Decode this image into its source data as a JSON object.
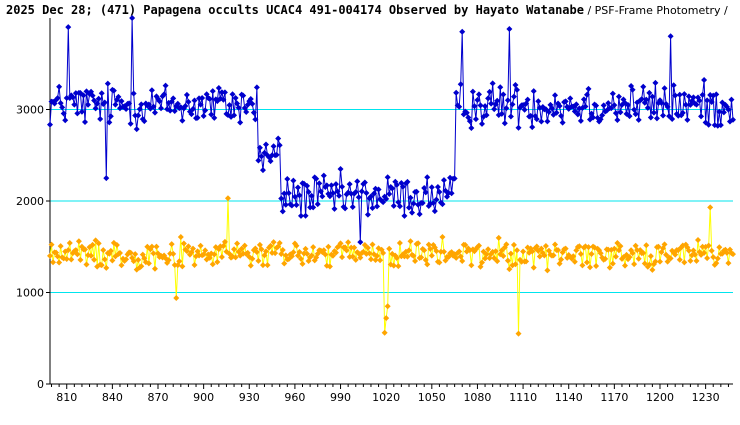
{
  "title": {
    "main": "2025 Dec 28; (471) Papagena occults UCAC4 491-004174 Observed by Hayato Watanabe",
    "sub": " / PSF-Frame Photometry /"
  },
  "chart_data": {
    "type": "scatter",
    "title": "2025 Dec 28; (471) Papagena occults UCAC4 491-004174 Observed by Hayato Watanabe / PSF-Frame Photometry /",
    "xlabel": "",
    "ylabel": "",
    "xlim": [
      799,
      1248
    ],
    "ylim": [
      0,
      4000
    ],
    "x_ticks": [
      810,
      840,
      870,
      900,
      930,
      960,
      990,
      1020,
      1050,
      1080,
      1110,
      1140,
      1170,
      1200,
      1230
    ],
    "y_ticks": [
      0,
      1000,
      2000,
      3000
    ],
    "gridlines_y": [
      1000,
      2000,
      3000
    ],
    "grid_color": "#00e5ee",
    "series": [
      {
        "color": "#0000cd",
        "marker": "diamond",
        "baseline": {
          "x_start": 799,
          "x_end": 1248,
          "levels": [
            {
              "x_from": 799,
              "x_to": 936,
              "level": 3050
            },
            {
              "x_from": 936,
              "x_to": 951,
              "level": 2500
            },
            {
              "x_from": 951,
              "x_to": 1066,
              "level": 2050
            },
            {
              "x_from": 1066,
              "x_to": 1248,
              "level": 3050
            }
          ]
        },
        "scatter": 350,
        "spikes": [
          {
            "x": 811,
            "y": 3900
          },
          {
            "x": 853,
            "y": 4000
          },
          {
            "x": 836,
            "y": 2250
          },
          {
            "x": 1070,
            "y": 3850
          },
          {
            "x": 1101,
            "y": 3880
          },
          {
            "x": 1207,
            "y": 3800
          },
          {
            "x": 1003,
            "y": 1550
          }
        ]
      },
      {
        "color": "#ffa500",
        "line_color": "#ffff00",
        "marker": "diamond",
        "baseline": {
          "x_start": 799,
          "x_end": 1248,
          "levels": [
            {
              "x_from": 799,
              "x_to": 1248,
              "level": 1420
            }
          ]
        },
        "scatter": 220,
        "spikes": [
          {
            "x": 1019,
            "y": 560
          },
          {
            "x": 1020,
            "y": 720
          },
          {
            "x": 1021,
            "y": 850
          },
          {
            "x": 1107,
            "y": 550
          },
          {
            "x": 882,
            "y": 940
          },
          {
            "x": 916,
            "y": 2030
          },
          {
            "x": 1233,
            "y": 1930
          }
        ]
      }
    ]
  }
}
